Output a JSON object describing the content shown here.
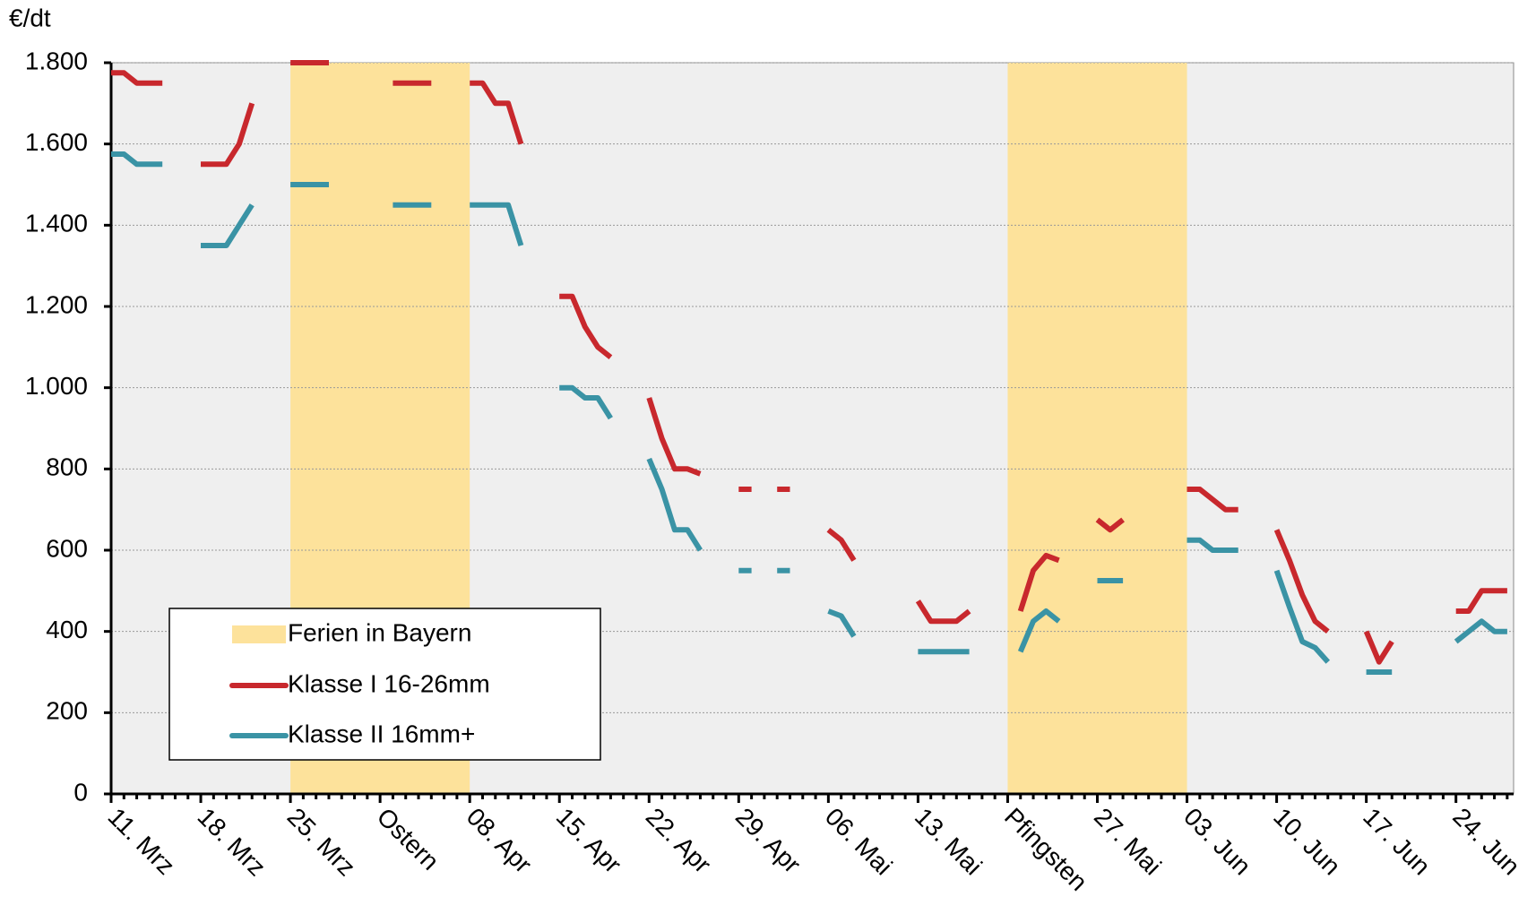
{
  "chart_data": {
    "type": "line",
    "y_axis_label": "€/dt",
    "categories": [
      "11. Mrz",
      null,
      null,
      null,
      null,
      null,
      null,
      "18. Mrz",
      null,
      null,
      null,
      null,
      null,
      null,
      "25. Mrz",
      null,
      null,
      null,
      null,
      null,
      null,
      "Ostern",
      null,
      null,
      null,
      null,
      null,
      null,
      "08. Apr",
      null,
      null,
      null,
      null,
      null,
      null,
      "15. Apr",
      null,
      null,
      null,
      null,
      null,
      null,
      "22. Apr",
      null,
      null,
      null,
      null,
      null,
      null,
      "29. Apr",
      null,
      null,
      null,
      null,
      null,
      null,
      "06. Mai",
      null,
      null,
      null,
      null,
      null,
      null,
      "13. Mai",
      null,
      null,
      null,
      null,
      null,
      null,
      "Pfingsten",
      null,
      null,
      null,
      null,
      null,
      null,
      "27. Mai",
      null,
      null,
      null,
      null,
      null,
      null,
      "03. Jun",
      null,
      null,
      null,
      null,
      null,
      null,
      "10. Jun",
      null,
      null,
      null,
      null,
      null,
      null,
      "17. Jun",
      null,
      null,
      null,
      null,
      null,
      null,
      "24. Jun",
      null,
      null,
      null,
      null
    ],
    "bands": {
      "name": "Ferien in Bayern",
      "color": "#fde29b",
      "ranges": [
        [
          14,
          28
        ],
        [
          70,
          84
        ]
      ]
    },
    "series": [
      {
        "name": "Klasse I 16-26mm",
        "color": "#c8282d",
        "values": [
          1775,
          1775,
          1750,
          1750,
          1750,
          null,
          null,
          1550,
          1550,
          1550,
          1600,
          1700,
          null,
          null,
          1800,
          1800,
          1800,
          1800,
          null,
          null,
          null,
          null,
          1750,
          1750,
          1750,
          1750,
          null,
          null,
          1750,
          1750,
          1700,
          1700,
          1600,
          null,
          null,
          1225,
          1225,
          1150,
          1100,
          1075,
          null,
          null,
          975,
          875,
          800,
          800,
          788,
          null,
          null,
          750,
          750,
          null,
          750,
          750,
          null,
          null,
          650,
          625,
          575,
          null,
          null,
          null,
          null,
          475,
          425,
          425,
          425,
          450,
          null,
          null,
          null,
          450,
          550,
          587,
          575,
          null,
          null,
          675,
          650,
          675,
          null,
          null,
          null,
          null,
          750,
          750,
          725,
          700,
          700,
          null,
          null,
          650,
          575,
          490,
          425,
          400,
          null,
          null,
          400,
          325,
          375,
          null,
          null,
          null,
          null,
          450,
          450,
          500,
          500,
          500
        ]
      },
      {
        "name": "Klasse II 16mm+",
        "color": "#3a93a5",
        "values": [
          1575,
          1575,
          1550,
          1550,
          1550,
          null,
          null,
          1350,
          1350,
          1350,
          1400,
          1450,
          null,
          null,
          1500,
          1500,
          1500,
          1500,
          null,
          null,
          null,
          null,
          1450,
          1450,
          1450,
          1450,
          null,
          null,
          1450,
          1450,
          1450,
          1450,
          1350,
          null,
          null,
          1000,
          1000,
          975,
          975,
          925,
          null,
          null,
          825,
          750,
          650,
          650,
          600,
          null,
          null,
          550,
          550,
          null,
          550,
          550,
          null,
          null,
          450,
          438,
          388,
          null,
          null,
          null,
          null,
          350,
          350,
          350,
          350,
          350,
          null,
          null,
          null,
          350,
          425,
          450,
          425,
          null,
          null,
          525,
          525,
          525,
          null,
          null,
          null,
          null,
          625,
          625,
          600,
          600,
          600,
          null,
          null,
          550,
          460,
          375,
          360,
          325,
          null,
          null,
          300,
          300,
          300,
          null,
          null,
          null,
          null,
          375,
          400,
          425,
          400,
          400
        ]
      }
    ],
    "ylim": [
      0,
      1800
    ],
    "yticks": [
      0,
      200,
      400,
      600,
      800,
      {
        "value": 1000,
        "label": "1.000"
      },
      {
        "value": 1200,
        "label": "1.200"
      },
      {
        "value": 1400,
        "label": "1.400"
      },
      {
        "value": 1600,
        "label": "1.600"
      },
      {
        "value": 1800,
        "label": "1.800"
      }
    ],
    "grid": true
  }
}
